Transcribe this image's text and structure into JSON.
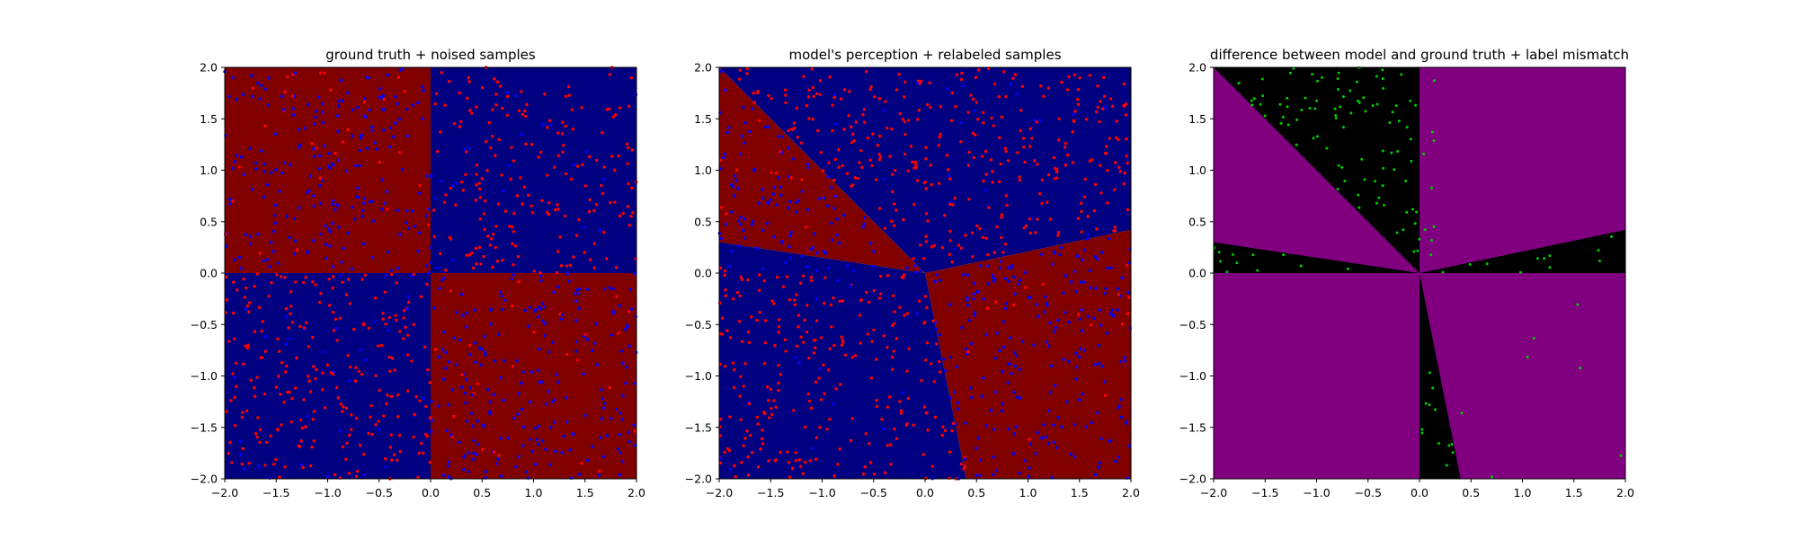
{
  "chart_data": [
    {
      "type": "scatter",
      "title": "ground truth + noised samples",
      "xlabel": "",
      "ylabel": "",
      "xlim": [
        -2.0,
        2.0
      ],
      "ylim": [
        -2.0,
        2.0
      ],
      "xticks": [
        "−2.0",
        "−1.5",
        "−1.0",
        "−0.5",
        "0.0",
        "0.5",
        "1.0",
        "1.5",
        "2.0"
      ],
      "yticks": [
        "−2.0",
        "−1.5",
        "−1.0",
        "−0.5",
        "0.0",
        "0.5",
        "1.0",
        "1.5",
        "2.0"
      ],
      "grid": false,
      "background": {
        "kind": "quadrant-xor",
        "positive_product_color": "#000080",
        "negative_product_color": "#800000"
      },
      "series": [
        {
          "color": "#ff0000",
          "sample_count": 520,
          "distribution": "mostly x*y>0 region with noise"
        },
        {
          "color": "#0000ff",
          "sample_count": 480,
          "distribution": "mostly x*y<0 region with noise"
        }
      ]
    },
    {
      "type": "scatter",
      "title": "model's perception + relabeled samples",
      "xlabel": "",
      "ylabel": "",
      "xlim": [
        -2.0,
        2.0
      ],
      "ylim": [
        -2.0,
        2.0
      ],
      "xticks": [
        "−2.0",
        "−1.5",
        "−1.0",
        "−0.5",
        "0.0",
        "0.5",
        "1.0",
        "1.5",
        "2.0"
      ],
      "yticks": [
        "−2.0",
        "−1.5",
        "−1.0",
        "−0.5",
        "0.0",
        "0.5",
        "1.0",
        "1.5",
        "2.0"
      ],
      "grid": false,
      "background": {
        "kind": "angular-sectors",
        "class_a_color": "#000080",
        "class_b_color": "#800000",
        "boundary_points": [
          [
            -2.0,
            2.0
          ],
          [
            -2.0,
            0.3
          ],
          [
            2.0,
            0.42
          ],
          [
            0.4,
            -2.0
          ]
        ]
      },
      "series": [
        {
          "color": "#ff0000",
          "sample_count": 500
        },
        {
          "color": "#0000ff",
          "sample_count": 500
        }
      ]
    },
    {
      "type": "scatter",
      "title": "difference between model and ground truth + label mismatch",
      "xlabel": "",
      "ylabel": "",
      "xlim": [
        -2.0,
        2.0
      ],
      "ylim": [
        -2.0,
        2.0
      ],
      "xticks": [
        "−2.0",
        "−1.5",
        "−1.0",
        "−0.5",
        "0.0",
        "0.5",
        "1.0",
        "1.5",
        "2.0"
      ],
      "yticks": [
        "−2.0",
        "−1.5",
        "−1.0",
        "−0.5",
        "0.0",
        "0.5",
        "1.0",
        "1.5",
        "2.0"
      ],
      "grid": false,
      "background": {
        "kind": "mismatch-regions",
        "match_color": "#800080",
        "mismatch_color": "#000000",
        "mismatch_wedges": [
          [
            [
              0,
              0
            ],
            [
              -2.0,
              2.0
            ],
            [
              0,
              2.0
            ]
          ],
          [
            [
              0,
              0
            ],
            [
              -2.0,
              0.3
            ],
            [
              -2.0,
              0
            ]
          ],
          [
            [
              0,
              0
            ],
            [
              2.0,
              0.42
            ],
            [
              2.0,
              0
            ]
          ],
          [
            [
              0,
              0
            ],
            [
              0,
              -2.0
            ],
            [
              0.4,
              -2.0
            ]
          ]
        ]
      },
      "series": [
        {
          "color": "#00cc00",
          "sample_count": 140,
          "distribution": "mismatched labels"
        }
      ]
    }
  ]
}
